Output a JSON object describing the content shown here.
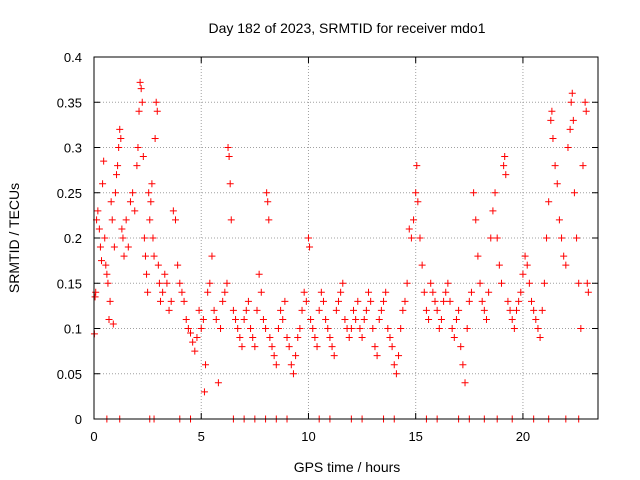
{
  "chart_data": {
    "type": "scatter",
    "title": "Day 182 of 2023, SRMTID for receiver mdo1",
    "xlabel": "GPS time / hours",
    "ylabel": "SRMTID / TECUs",
    "xlim": [
      0,
      23.5
    ],
    "ylim": [
      0,
      0.4
    ],
    "xticks": [
      0,
      5,
      10,
      15,
      20
    ],
    "xtick_labels": [
      "0",
      "5",
      "10",
      "15",
      "20"
    ],
    "yticks": [
      0,
      0.05,
      0.1,
      0.15,
      0.2,
      0.25,
      0.3,
      0.35,
      0.4
    ],
    "ytick_labels": [
      "0",
      "0.05",
      "0.1",
      "0.15",
      "0.2",
      "0.25",
      "0.3",
      "0.35",
      "0.4"
    ],
    "grid": true,
    "marker": "+",
    "series_color": "#ff0000",
    "series": [
      {
        "name": "SRMTID",
        "points": [
          [
            0.02,
            0.094
          ],
          [
            0.05,
            0.135
          ],
          [
            0.08,
            0.14
          ],
          [
            0.12,
            0.22
          ],
          [
            0.18,
            0.23
          ],
          [
            0.25,
            0.21
          ],
          [
            0.3,
            0.19
          ],
          [
            0.35,
            0.175
          ],
          [
            0.4,
            0.26
          ],
          [
            0.45,
            0.285
          ],
          [
            0.5,
            0.2
          ],
          [
            0.55,
            0.17
          ],
          [
            0.6,
            0.16
          ],
          [
            0.65,
            0.15
          ],
          [
            0.7,
            0.11
          ],
          [
            0.75,
            0.13
          ],
          [
            0.8,
            0.24
          ],
          [
            0.85,
            0.22
          ],
          [
            0.9,
            0.105
          ],
          [
            0.95,
            0.19
          ],
          [
            1.0,
            0.25
          ],
          [
            1.05,
            0.27
          ],
          [
            1.1,
            0.28
          ],
          [
            1.15,
            0.3
          ],
          [
            1.2,
            0.32
          ],
          [
            1.25,
            0.31
          ],
          [
            1.3,
            0.21
          ],
          [
            1.35,
            0.2
          ],
          [
            1.4,
            0.18
          ],
          [
            1.5,
            0.22
          ],
          [
            1.6,
            0.19
          ],
          [
            1.7,
            0.24
          ],
          [
            1.8,
            0.25
          ],
          [
            1.9,
            0.23
          ],
          [
            2.0,
            0.28
          ],
          [
            2.05,
            0.3
          ],
          [
            2.1,
            0.34
          ],
          [
            2.15,
            0.372
          ],
          [
            2.2,
            0.365
          ],
          [
            2.25,
            0.35
          ],
          [
            2.3,
            0.29
          ],
          [
            2.35,
            0.2
          ],
          [
            2.4,
            0.18
          ],
          [
            2.45,
            0.16
          ],
          [
            2.5,
            0.14
          ],
          [
            2.55,
            0.25
          ],
          [
            2.6,
            0.22
          ],
          [
            2.65,
            0.24
          ],
          [
            2.7,
            0.26
          ],
          [
            2.75,
            0.2
          ],
          [
            2.8,
            0.18
          ],
          [
            2.85,
            0.31
          ],
          [
            2.9,
            0.35
          ],
          [
            2.95,
            0.34
          ],
          [
            3.0,
            0.17
          ],
          [
            3.05,
            0.15
          ],
          [
            3.1,
            0.13
          ],
          [
            3.2,
            0.14
          ],
          [
            3.3,
            0.16
          ],
          [
            3.4,
            0.15
          ],
          [
            3.5,
            0.12
          ],
          [
            3.6,
            0.13
          ],
          [
            3.7,
            0.23
          ],
          [
            3.8,
            0.22
          ],
          [
            3.9,
            0.17
          ],
          [
            4.0,
            0.15
          ],
          [
            4.1,
            0.14
          ],
          [
            4.2,
            0.13
          ],
          [
            4.3,
            0.11
          ],
          [
            4.4,
            0.1
          ],
          [
            4.5,
            0.095
          ],
          [
            4.6,
            0.085
          ],
          [
            4.7,
            0.075
          ],
          [
            4.8,
            0.09
          ],
          [
            4.9,
            0.12
          ],
          [
            5.0,
            0.1
          ],
          [
            5.1,
            0.11
          ],
          [
            5.15,
            0.03
          ],
          [
            5.2,
            0.06
          ],
          [
            5.3,
            0.14
          ],
          [
            5.4,
            0.15
          ],
          [
            5.5,
            0.18
          ],
          [
            5.6,
            0.12
          ],
          [
            5.7,
            0.11
          ],
          [
            5.8,
            0.04
          ],
          [
            5.9,
            0.1
          ],
          [
            6.0,
            0.13
          ],
          [
            6.1,
            0.14
          ],
          [
            6.2,
            0.15
          ],
          [
            6.25,
            0.3
          ],
          [
            6.3,
            0.29
          ],
          [
            6.35,
            0.26
          ],
          [
            6.4,
            0.22
          ],
          [
            6.5,
            0.12
          ],
          [
            6.6,
            0.11
          ],
          [
            6.7,
            0.1
          ],
          [
            6.8,
            0.09
          ],
          [
            6.9,
            0.08
          ],
          [
            7.0,
            0.11
          ],
          [
            7.1,
            0.12
          ],
          [
            7.2,
            0.13
          ],
          [
            7.3,
            0.1
          ],
          [
            7.4,
            0.09
          ],
          [
            7.5,
            0.08
          ],
          [
            7.6,
            0.12
          ],
          [
            7.7,
            0.16
          ],
          [
            7.8,
            0.14
          ],
          [
            7.9,
            0.11
          ],
          [
            8.0,
            0.1
          ],
          [
            8.05,
            0.25
          ],
          [
            8.1,
            0.24
          ],
          [
            8.15,
            0.22
          ],
          [
            8.2,
            0.09
          ],
          [
            8.3,
            0.08
          ],
          [
            8.4,
            0.07
          ],
          [
            8.5,
            0.06
          ],
          [
            8.6,
            0.1
          ],
          [
            8.7,
            0.12
          ],
          [
            8.8,
            0.11
          ],
          [
            8.9,
            0.13
          ],
          [
            9.0,
            0.09
          ],
          [
            9.1,
            0.08
          ],
          [
            9.2,
            0.06
          ],
          [
            9.3,
            0.05
          ],
          [
            9.4,
            0.07
          ],
          [
            9.5,
            0.09
          ],
          [
            9.6,
            0.1
          ],
          [
            9.7,
            0.12
          ],
          [
            9.8,
            0.14
          ],
          [
            9.9,
            0.13
          ],
          [
            10.0,
            0.2
          ],
          [
            10.05,
            0.19
          ],
          [
            10.1,
            0.11
          ],
          [
            10.2,
            0.1
          ],
          [
            10.3,
            0.09
          ],
          [
            10.4,
            0.08
          ],
          [
            10.5,
            0.12
          ],
          [
            10.6,
            0.14
          ],
          [
            10.7,
            0.13
          ],
          [
            10.8,
            0.11
          ],
          [
            10.9,
            0.1
          ],
          [
            11.0,
            0.09
          ],
          [
            11.1,
            0.08
          ],
          [
            11.2,
            0.07
          ],
          [
            11.3,
            0.12
          ],
          [
            11.4,
            0.13
          ],
          [
            11.5,
            0.14
          ],
          [
            11.6,
            0.15
          ],
          [
            11.7,
            0.11
          ],
          [
            11.8,
            0.1
          ],
          [
            11.9,
            0.09
          ],
          [
            12.0,
            0.1
          ],
          [
            12.1,
            0.12
          ],
          [
            12.2,
            0.11
          ],
          [
            12.3,
            0.13
          ],
          [
            12.4,
            0.1
          ],
          [
            12.5,
            0.09
          ],
          [
            12.6,
            0.11
          ],
          [
            12.7,
            0.12
          ],
          [
            12.8,
            0.14
          ],
          [
            12.9,
            0.13
          ],
          [
            13.0,
            0.1
          ],
          [
            13.1,
            0.08
          ],
          [
            13.2,
            0.07
          ],
          [
            13.3,
            0.11
          ],
          [
            13.4,
            0.12
          ],
          [
            13.5,
            0.13
          ],
          [
            13.6,
            0.14
          ],
          [
            13.7,
            0.1
          ],
          [
            13.8,
            0.09
          ],
          [
            13.9,
            0.08
          ],
          [
            14.0,
            0.06
          ],
          [
            14.1,
            0.05
          ],
          [
            14.2,
            0.07
          ],
          [
            14.3,
            0.1
          ],
          [
            14.4,
            0.12
          ],
          [
            14.5,
            0.13
          ],
          [
            14.6,
            0.15
          ],
          [
            14.7,
            0.21
          ],
          [
            14.8,
            0.2
          ],
          [
            14.9,
            0.22
          ],
          [
            15.0,
            0.25
          ],
          [
            15.05,
            0.28
          ],
          [
            15.1,
            0.24
          ],
          [
            15.2,
            0.2
          ],
          [
            15.3,
            0.17
          ],
          [
            15.4,
            0.14
          ],
          [
            15.5,
            0.12
          ],
          [
            15.6,
            0.11
          ],
          [
            15.7,
            0.15
          ],
          [
            15.8,
            0.14
          ],
          [
            15.9,
            0.13
          ],
          [
            16.0,
            0.12
          ],
          [
            16.1,
            0.1
          ],
          [
            16.2,
            0.11
          ],
          [
            16.3,
            0.13
          ],
          [
            16.4,
            0.14
          ],
          [
            16.5,
            0.15
          ],
          [
            16.6,
            0.13
          ],
          [
            16.7,
            0.1
          ],
          [
            16.8,
            0.09
          ],
          [
            16.9,
            0.11
          ],
          [
            17.0,
            0.12
          ],
          [
            17.1,
            0.08
          ],
          [
            17.2,
            0.06
          ],
          [
            17.3,
            0.04
          ],
          [
            17.4,
            0.1
          ],
          [
            17.5,
            0.13
          ],
          [
            17.6,
            0.14
          ],
          [
            17.7,
            0.25
          ],
          [
            17.8,
            0.22
          ],
          [
            17.9,
            0.18
          ],
          [
            18.0,
            0.15
          ],
          [
            18.1,
            0.13
          ],
          [
            18.2,
            0.12
          ],
          [
            18.3,
            0.11
          ],
          [
            18.4,
            0.14
          ],
          [
            18.5,
            0.2
          ],
          [
            18.6,
            0.23
          ],
          [
            18.7,
            0.25
          ],
          [
            18.8,
            0.2
          ],
          [
            18.9,
            0.17
          ],
          [
            19.0,
            0.15
          ],
          [
            19.1,
            0.28
          ],
          [
            19.15,
            0.29
          ],
          [
            19.2,
            0.27
          ],
          [
            19.3,
            0.13
          ],
          [
            19.4,
            0.12
          ],
          [
            19.5,
            0.11
          ],
          [
            19.6,
            0.1
          ],
          [
            19.7,
            0.12
          ],
          [
            19.8,
            0.13
          ],
          [
            19.9,
            0.14
          ],
          [
            20.0,
            0.16
          ],
          [
            20.1,
            0.18
          ],
          [
            20.2,
            0.17
          ],
          [
            20.3,
            0.15
          ],
          [
            20.4,
            0.13
          ],
          [
            20.5,
            0.12
          ],
          [
            20.6,
            0.11
          ],
          [
            20.7,
            0.1
          ],
          [
            20.8,
            0.09
          ],
          [
            20.9,
            0.12
          ],
          [
            21.0,
            0.15
          ],
          [
            21.1,
            0.2
          ],
          [
            21.2,
            0.24
          ],
          [
            21.3,
            0.33
          ],
          [
            21.35,
            0.34
          ],
          [
            21.4,
            0.31
          ],
          [
            21.5,
            0.28
          ],
          [
            21.6,
            0.26
          ],
          [
            21.7,
            0.22
          ],
          [
            21.8,
            0.2
          ],
          [
            21.9,
            0.18
          ],
          [
            22.0,
            0.17
          ],
          [
            22.1,
            0.3
          ],
          [
            22.2,
            0.32
          ],
          [
            22.25,
            0.35
          ],
          [
            22.3,
            0.36
          ],
          [
            22.35,
            0.33
          ],
          [
            22.4,
            0.25
          ],
          [
            22.5,
            0.2
          ],
          [
            22.6,
            0.15
          ],
          [
            22.7,
            0.1
          ],
          [
            22.8,
            0.28
          ],
          [
            22.9,
            0.35
          ],
          [
            22.95,
            0.34
          ],
          [
            23.0,
            0.15
          ],
          [
            23.05,
            0.14
          ],
          [
            0.6,
            0.0
          ],
          [
            1.2,
            0.0
          ],
          [
            2.6,
            0.0
          ],
          [
            2.8,
            0.0
          ],
          [
            4.0,
            0.0
          ],
          [
            4.5,
            0.0
          ],
          [
            6.5,
            0.0
          ],
          [
            7.0,
            0.0
          ],
          [
            7.5,
            0.0
          ],
          [
            8.0,
            0.0
          ],
          [
            8.5,
            0.0
          ],
          [
            9.0,
            0.0
          ],
          [
            10.5,
            0.0
          ],
          [
            11.0,
            0.0
          ],
          [
            12.0,
            0.0
          ],
          [
            12.5,
            0.0
          ],
          [
            13.5,
            0.0
          ],
          [
            14.0,
            0.0
          ],
          [
            15.5,
            0.0
          ],
          [
            16.0,
            0.0
          ],
          [
            17.0,
            0.0
          ],
          [
            17.5,
            0.0
          ],
          [
            18.2,
            0.0
          ],
          [
            18.8,
            0.0
          ],
          [
            19.5,
            0.0
          ],
          [
            20.5,
            0.0
          ],
          [
            21.2,
            0.0
          ],
          [
            22.0,
            0.0
          ],
          [
            22.6,
            0.0
          ]
        ]
      }
    ]
  }
}
